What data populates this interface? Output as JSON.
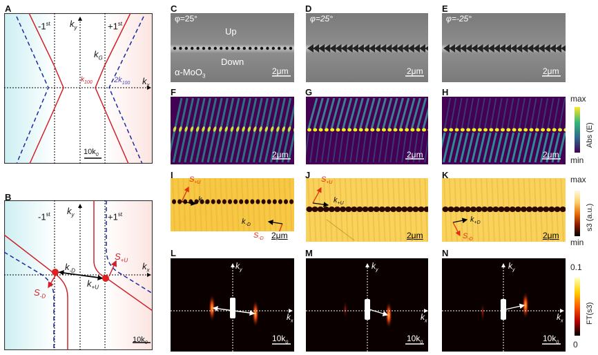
{
  "panels": {
    "A": {
      "label": "A",
      "minus_first": "-1",
      "plus_first": "+1",
      "order_sup": "st",
      "ky": "k",
      "ky_sub": "y",
      "kx": "k",
      "kx_sub": "x",
      "kG": "k",
      "kG_sub": "G",
      "k100": "k",
      "k100_sub": "100",
      "two_k100": "2k",
      "two_k100_sub": "100",
      "scale": "10k",
      "scale_sub": "0"
    },
    "B": {
      "label": "B",
      "minus_first": "-1",
      "plus_first": "+1",
      "order_sup": "st",
      "ky": "k",
      "ky_sub": "y",
      "kx": "k",
      "kx_sub": "x",
      "k_minus_D": "k",
      "k_minus_D_sub": "-D",
      "k_plus_U": "k",
      "k_plus_U_sub": "+U",
      "S_plus_U": "S",
      "S_plus_U_sub": "+U",
      "S_minus_D": "S",
      "S_minus_D_sub": "-D",
      "scale": "10k",
      "scale_sub": "0"
    },
    "C": {
      "label": "C",
      "angle": "φ=25°",
      "up": "Up",
      "down": "Down",
      "material": "α-MoO",
      "material_sub": "3",
      "scale": "2μm"
    },
    "D": {
      "label": "D",
      "angle": "φ=25°",
      "scale": "2μm"
    },
    "E": {
      "label": "E",
      "angle": "φ=-25°",
      "scale": "2μm"
    },
    "F": {
      "label": "F",
      "scale": "2μm"
    },
    "G": {
      "label": "G",
      "scale": "2μm"
    },
    "H": {
      "label": "H",
      "scale": "2μm"
    },
    "I": {
      "label": "I",
      "S_plus_U": "S",
      "S_plus_U_sub": "+U",
      "k_plus_U": "k",
      "k_plus_U_sub": "+U",
      "k_minus_D": "k",
      "k_minus_D_sub": "-D",
      "S_minus_D": "S",
      "S_minus_D_sub": "-D",
      "scale": "2μm"
    },
    "J": {
      "label": "J",
      "S_plus_U": "S",
      "S_plus_U_sub": "+U",
      "k_plus_U": "k",
      "k_plus_U_sub": "+U",
      "scale": "2μm"
    },
    "K": {
      "label": "K",
      "k_plus_D": "k",
      "k_plus_D_sub": "+D",
      "S_minus_D": "S",
      "S_minus_D_sub": "-D",
      "scale": "2μm"
    },
    "L": {
      "label": "L",
      "ky": "k",
      "ky_sub": "y",
      "kx": "k",
      "kx_sub": "x",
      "scale": "10k",
      "scale_sub": "0"
    },
    "M": {
      "label": "M",
      "ky": "k",
      "ky_sub": "y",
      "kx": "k",
      "kx_sub": "x",
      "scale": "10k",
      "scale_sub": "0"
    },
    "N": {
      "label": "N",
      "ky": "k",
      "ky_sub": "y",
      "kx": "k",
      "kx_sub": "x",
      "scale": "10k",
      "scale_sub": "0"
    }
  },
  "colorbars": {
    "absE": {
      "max": "max",
      "min": "min",
      "title": "Abs (E)",
      "colors": [
        "#440154",
        "#31688e",
        "#35b779",
        "#fde725"
      ]
    },
    "s3": {
      "max": "max",
      "min": "min",
      "title": "s3 (a.u.)",
      "colors": [
        "#000000",
        "#8b1a00",
        "#e8700a",
        "#fbd26a",
        "#fff8e0"
      ]
    },
    "ft": {
      "max": "0.1",
      "min": "0",
      "title": "FT(s3)",
      "colors": [
        "#000000",
        "#b40000",
        "#ff5a00",
        "#ffd000",
        "#ffffc0"
      ]
    }
  },
  "colors": {
    "red_curve": "#d0202a",
    "blue_dashed": "#1a2aa0",
    "left_region": "#d8f3f5",
    "right_region": "#fbe9e6",
    "sem_gray": "#7a7a7a",
    "viridis_bg": "#440154",
    "afm_bg": "#f6c844"
  }
}
